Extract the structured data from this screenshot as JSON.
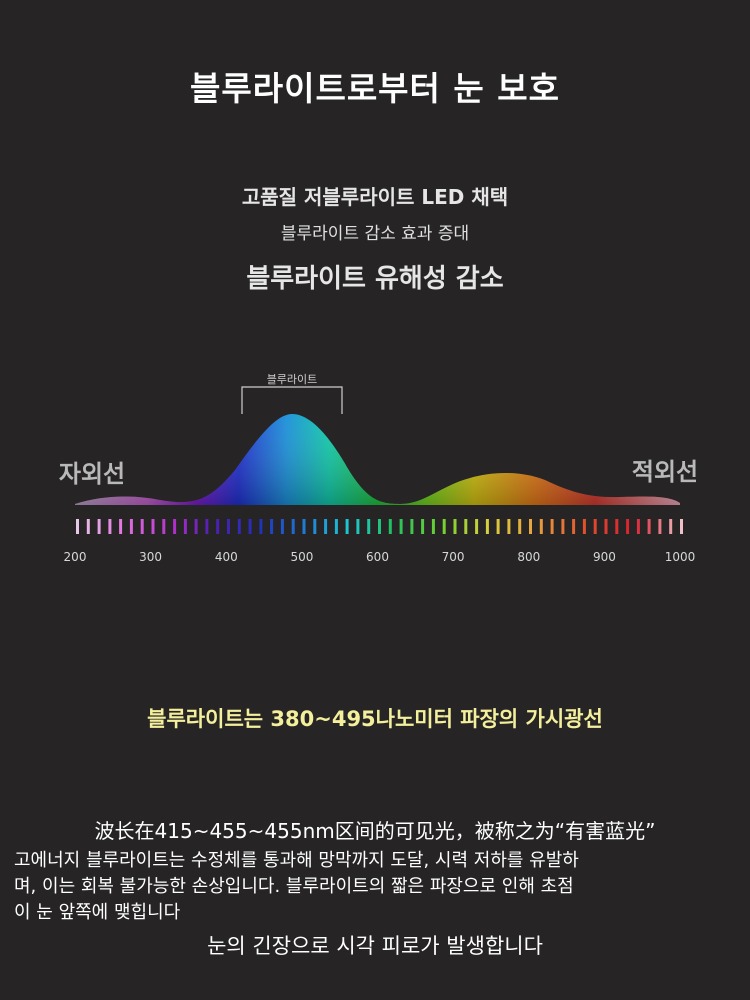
{
  "title": "블루라이트로부터 눈 보호",
  "features": {
    "line1": "고품질 저블루라이트 LED 채택",
    "line2": "블루라이트 감소 효과 증대",
    "line3": "블루라이트 유해성 감소"
  },
  "spectrum": {
    "bracket_label": "블루라이트",
    "left_label": "자외선",
    "right_label": "적외선",
    "ticks": [
      "200",
      "300",
      "400",
      "500",
      "600",
      "700",
      "800",
      "900",
      "1000"
    ]
  },
  "headline": "블루라이트는 380~495나노미터 파장의 가시광선",
  "chinese_line": "波长在415~455~455nm区间的可见光，被称之为“有害蓝光”",
  "body": {
    "line1": "고에너지 블루라이트는 수정체를 통과해 망막까지 도달, 시력 저하를 유발하",
    "line2": "며, 이는 회복 불가능한 손상입니다. 블루라이트의 짧은 파장으로 인해 초점",
    "line3": "이 눈 앞쪽에 맺힙니다"
  },
  "final": "눈의 긴장으로 시각 피로가 발생합니다"
}
